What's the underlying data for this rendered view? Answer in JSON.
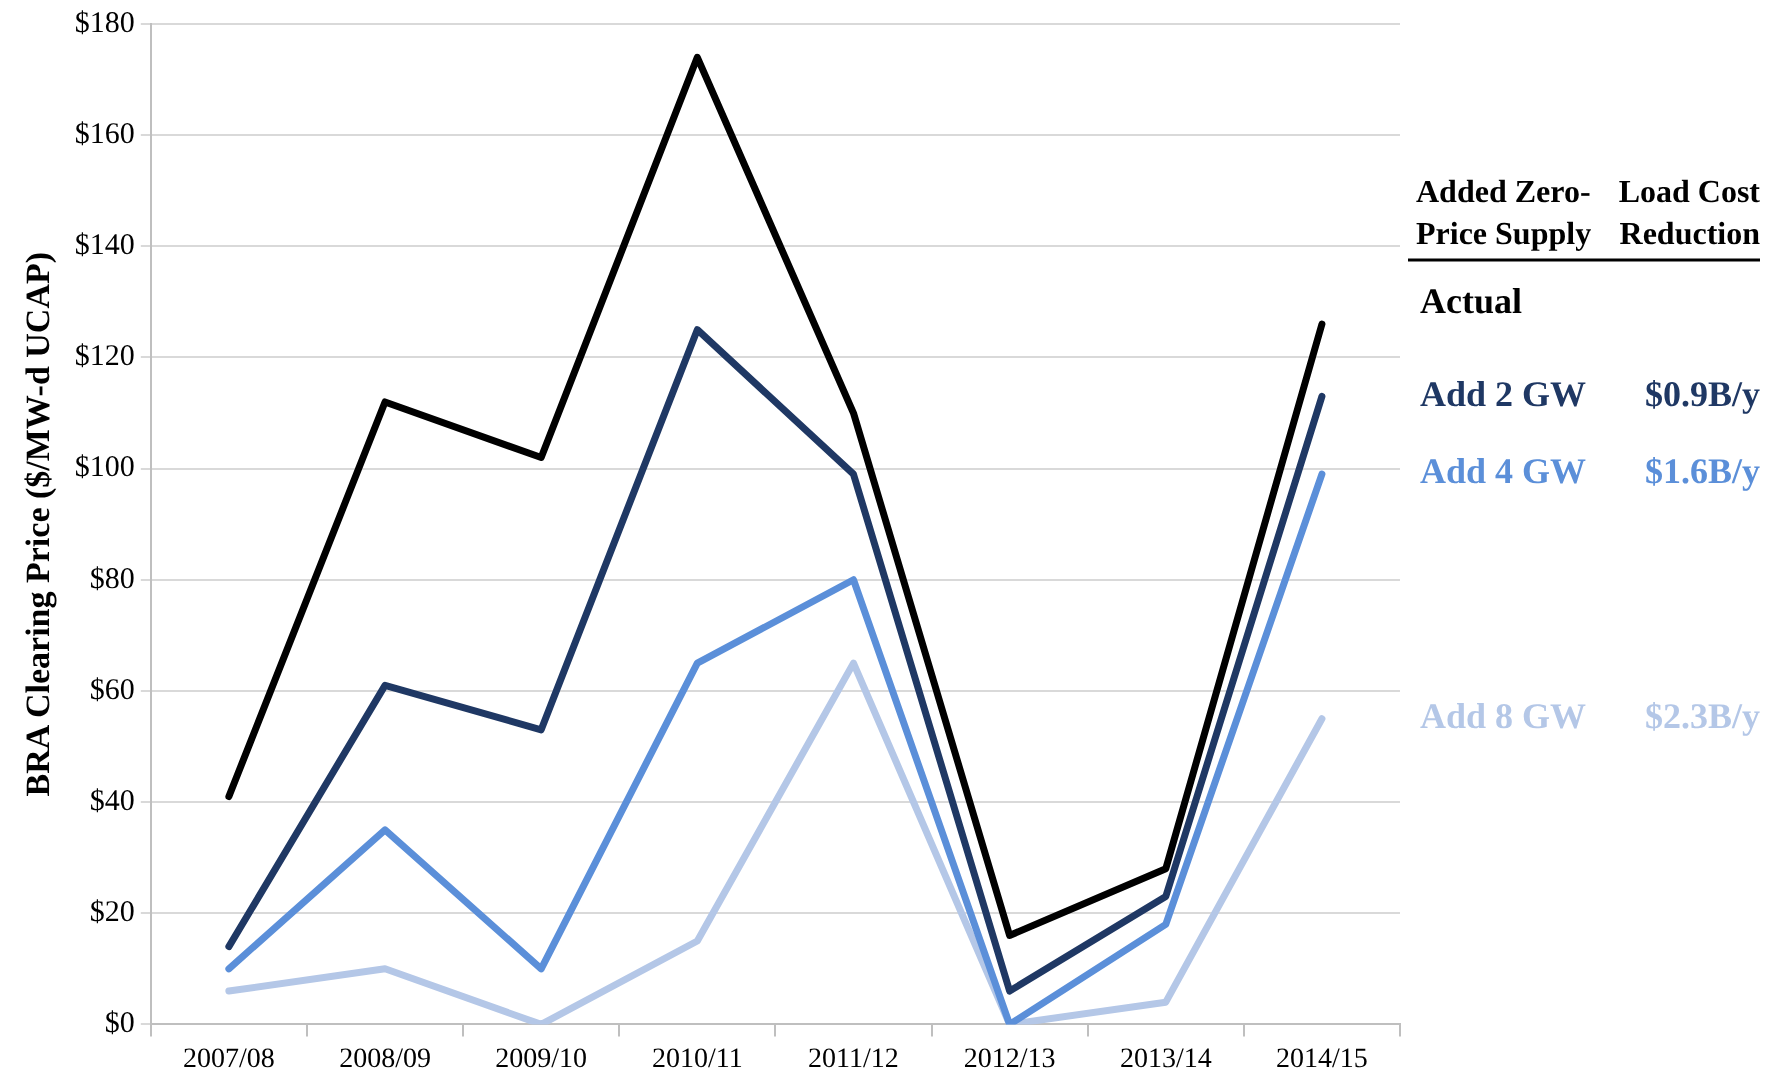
{
  "chart_data": {
    "type": "line",
    "ylabel": "BRA Clearing Price ($/MW-d UCAP)",
    "legend_title": "Added Zero-\nPrice Supply",
    "legend": "right",
    "grid": "y",
    "marker": "none",
    "line_style": "solid",
    "categories": [
      "2007/08",
      "2008/09",
      "2009/10",
      "2010/11",
      "2011/12",
      "2012/13",
      "2013/14",
      "2014/15"
    ],
    "ylim": [
      0,
      180
    ],
    "yticks": [
      {
        "value": 0,
        "label": "$0"
      },
      {
        "value": 20,
        "label": "$20"
      },
      {
        "value": 40,
        "label": "$40"
      },
      {
        "value": 60,
        "label": "$60"
      },
      {
        "value": 80,
        "label": "$80"
      },
      {
        "value": 100,
        "label": "$100"
      },
      {
        "value": 120,
        "label": "$120"
      },
      {
        "value": 140,
        "label": "$140"
      },
      {
        "value": 160,
        "label": "$160"
      },
      {
        "value": 180,
        "label": "$180"
      }
    ],
    "series": [
      {
        "name": "Actual",
        "color": "#000000",
        "values": [
          41,
          112,
          102,
          174,
          110,
          16,
          28,
          126
        ]
      },
      {
        "name": "Add 2 GW",
        "color": "#1f3864",
        "values": [
          14,
          61,
          53,
          125,
          99,
          6,
          23,
          113
        ]
      },
      {
        "name": "Add 4 GW",
        "color": "#5b8fd9",
        "values": [
          10,
          35,
          10,
          65,
          80,
          0,
          18,
          99
        ]
      },
      {
        "name": "Add 8 GW",
        "color": "#b4c7e7",
        "values": [
          6,
          10,
          0,
          15,
          65,
          0,
          4,
          55
        ]
      }
    ],
    "annotations": [
      "Load Cost\nReduction",
      "$0.9B/y",
      "$1.6B/y",
      "$2.3B/y"
    ]
  }
}
